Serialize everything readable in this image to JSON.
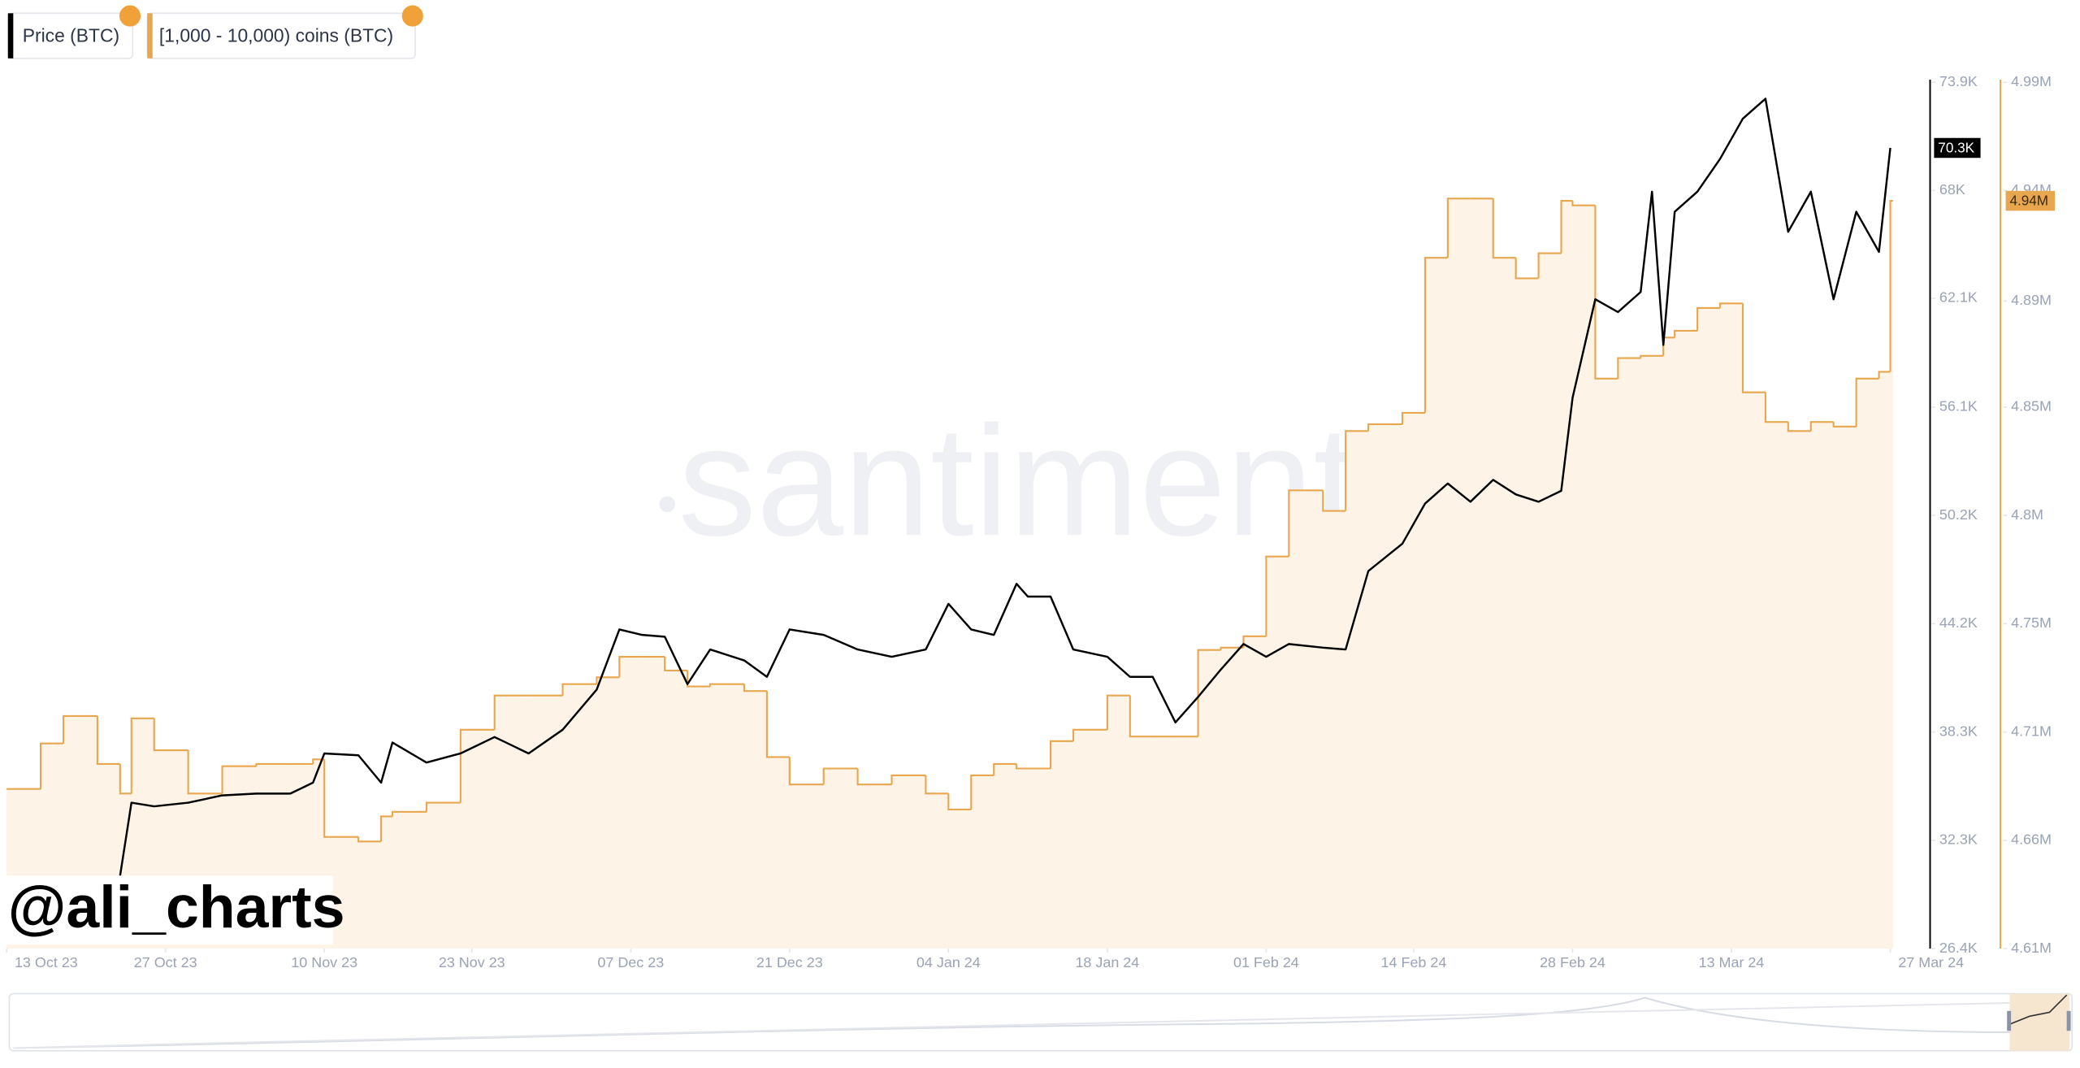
{
  "chart_data": {
    "type": "line",
    "legend": [
      "Price (BTC)",
      "[1,000 - 10,000) coins (BTC)"
    ],
    "watermark": "santiment",
    "credit": "@ali_charts",
    "grid": false,
    "x": [
      "2023-10-13",
      "2023-10-16",
      "2023-10-18",
      "2023-10-21",
      "2023-10-23",
      "2023-10-24",
      "2023-10-26",
      "2023-10-29",
      "2023-11-01",
      "2023-11-04",
      "2023-11-07",
      "2023-11-09",
      "2023-11-10",
      "2023-11-13",
      "2023-11-15",
      "2023-11-16",
      "2023-11-19",
      "2023-11-22",
      "2023-11-25",
      "2023-11-28",
      "2023-12-01",
      "2023-12-04",
      "2023-12-06",
      "2023-12-08",
      "2023-12-10",
      "2023-12-12",
      "2023-12-14",
      "2023-12-17",
      "2023-12-19",
      "2023-12-21",
      "2023-12-24",
      "2023-12-27",
      "2023-12-30",
      "2024-01-02",
      "2024-01-04",
      "2024-01-06",
      "2024-01-08",
      "2024-01-10",
      "2024-01-11",
      "2024-01-13",
      "2024-01-15",
      "2024-01-18",
      "2024-01-20",
      "2024-01-22",
      "2024-01-24",
      "2024-01-26",
      "2024-01-28",
      "2024-01-30",
      "2024-02-01",
      "2024-02-03",
      "2024-02-06",
      "2024-02-08",
      "2024-02-10",
      "2024-02-13",
      "2024-02-15",
      "2024-02-17",
      "2024-02-19",
      "2024-02-21",
      "2024-02-23",
      "2024-02-25",
      "2024-02-27",
      "2024-02-28",
      "2024-03-01",
      "2024-03-03",
      "2024-03-05",
      "2024-03-06",
      "2024-03-07",
      "2024-03-08",
      "2024-03-10",
      "2024-03-12",
      "2024-03-14",
      "2024-03-16",
      "2024-03-18",
      "2024-03-20",
      "2024-03-22",
      "2024-03-24",
      "2024-03-26",
      "2024-03-27"
    ],
    "xlim": [
      "2023-10-13",
      "2024-03-27"
    ],
    "xticks": [
      {
        "value": "2023-10-13",
        "label": "13 Oct 23"
      },
      {
        "value": "2023-10-27",
        "label": "27 Oct 23"
      },
      {
        "value": "2023-11-10",
        "label": "10 Nov 23"
      },
      {
        "value": "2023-11-23",
        "label": "23 Nov 23"
      },
      {
        "value": "2023-12-07",
        "label": "07 Dec 23"
      },
      {
        "value": "2023-12-21",
        "label": "21 Dec 23"
      },
      {
        "value": "2024-01-04",
        "label": "04 Jan 24"
      },
      {
        "value": "2024-01-18",
        "label": "18 Jan 24"
      },
      {
        "value": "2024-02-01",
        "label": "01 Feb 24"
      },
      {
        "value": "2024-02-14",
        "label": "14 Feb 24"
      },
      {
        "value": "2024-02-28",
        "label": "28 Feb 24"
      },
      {
        "value": "2024-03-13",
        "label": "13 Mar 24"
      },
      {
        "value": "2024-03-27",
        "label": "27 Mar 24"
      }
    ],
    "ylim": [
      26400,
      73900
    ],
    "yticks": [
      {
        "value": 26400,
        "label": "26.4K"
      },
      {
        "value": 32337,
        "label": "32.3K"
      },
      {
        "value": 38275,
        "label": "38.3K"
      },
      {
        "value": 44212,
        "label": "44.2K"
      },
      {
        "value": 50150,
        "label": "50.2K"
      },
      {
        "value": 56087,
        "label": "56.1K"
      },
      {
        "value": 62060,
        "label": "62.1K"
      },
      {
        "value": 67962,
        "label": "68K"
      },
      {
        "value": 73900,
        "label": "73.9K"
      }
    ],
    "y2lim": [
      4610000,
      4990000
    ],
    "y2ticks": [
      {
        "value": 4610000,
        "label": "4.61M"
      },
      {
        "value": 4657500,
        "label": "4.66M"
      },
      {
        "value": 4705000,
        "label": "4.71M"
      },
      {
        "value": 4752500,
        "label": "4.75M"
      },
      {
        "value": 4800000,
        "label": "4.8M"
      },
      {
        "value": 4847500,
        "label": "4.85M"
      },
      {
        "value": 4894000,
        "label": "4.89M"
      },
      {
        "value": 4942500,
        "label": "4.94M"
      },
      {
        "value": 4990000,
        "label": "4.99M"
      }
    ],
    "series": [
      {
        "name": "Price (BTC)",
        "color": "#000000",
        "axis": "y",
        "values": [
          null,
          null,
          null,
          null,
          30400,
          34400,
          34200,
          34400,
          34800,
          34900,
          34900,
          35500,
          37100,
          37000,
          35500,
          37700,
          36600,
          37100,
          38000,
          37100,
          38400,
          40600,
          43900,
          43600,
          43500,
          40900,
          42800,
          42200,
          41300,
          43900,
          43600,
          42800,
          42400,
          42800,
          45300,
          43900,
          43600,
          46400,
          45700,
          45700,
          42800,
          42400,
          41300,
          41300,
          38800,
          40200,
          41700,
          43100,
          42400,
          43100,
          42900,
          42800,
          47100,
          48600,
          50800,
          51900,
          50900,
          52100,
          51300,
          50900,
          51500,
          56600,
          62000,
          61300,
          62400,
          67900,
          59500,
          66800,
          67900,
          69700,
          71900,
          73000,
          65700,
          67900,
          62000,
          66800,
          64600,
          70300
        ],
        "value_labels": [
          null,
          null,
          null,
          null,
          null,
          null,
          null,
          null,
          null,
          null,
          null,
          null,
          null,
          null,
          null,
          null,
          null,
          null,
          null,
          null,
          null,
          null,
          null,
          null,
          null,
          null,
          null,
          null,
          null,
          null,
          null,
          null,
          null,
          null,
          null,
          null,
          null,
          null,
          null,
          null,
          null,
          null,
          null,
          null,
          null,
          null,
          null,
          null,
          null,
          null,
          null,
          null,
          null,
          null,
          null,
          null,
          null,
          null,
          null,
          null,
          null,
          null,
          null,
          null,
          null,
          null,
          null,
          null,
          null,
          null,
          null,
          null,
          null,
          null,
          null,
          null,
          null,
          "70.3K"
        ]
      },
      {
        "name": "[1,000 - 10,000) coins (BTC)",
        "color": "#e8a74f",
        "axis": "y2",
        "step": true,
        "area": true,
        "area_color": "#fdf3e6",
        "values": [
          4680000,
          4700000,
          4712000,
          4691000,
          4678000,
          4711000,
          4697000,
          4678000,
          4690000,
          4691000,
          4691000,
          4693000,
          4659000,
          4657000,
          4668000,
          4670000,
          4674000,
          4706000,
          4721000,
          4721000,
          4726000,
          4729000,
          4738000,
          4738000,
          4732000,
          4725000,
          4726000,
          4723000,
          4694000,
          4682000,
          4689000,
          4682000,
          4686000,
          4678000,
          4671000,
          4686000,
          4691000,
          4689000,
          4689000,
          4701000,
          4706000,
          4721000,
          4703000,
          4703000,
          4703000,
          4741000,
          4742000,
          4747000,
          4782000,
          4811000,
          4802000,
          4837000,
          4840000,
          4845000,
          4913000,
          4939000,
          4939000,
          4913000,
          4904000,
          4915000,
          4938000,
          4936000,
          4860000,
          4869000,
          4870000,
          4870000,
          4878000,
          4881000,
          4891000,
          4893000,
          4854000,
          4841000,
          4837000,
          4841000,
          4839000,
          4860000,
          4863000,
          4938000
        ],
        "value_labels": [
          null,
          null,
          null,
          null,
          null,
          null,
          null,
          null,
          null,
          null,
          null,
          null,
          null,
          null,
          null,
          null,
          null,
          null,
          null,
          null,
          null,
          null,
          null,
          null,
          null,
          null,
          null,
          null,
          null,
          null,
          null,
          null,
          null,
          null,
          null,
          null,
          null,
          null,
          null,
          null,
          null,
          null,
          null,
          null,
          null,
          null,
          null,
          null,
          null,
          null,
          null,
          null,
          null,
          null,
          null,
          null,
          null,
          null,
          null,
          null,
          null,
          null,
          null,
          null,
          null,
          null,
          null,
          null,
          null,
          null,
          null,
          null,
          null,
          null,
          null,
          null,
          null,
          "4.94M"
        ]
      }
    ]
  }
}
